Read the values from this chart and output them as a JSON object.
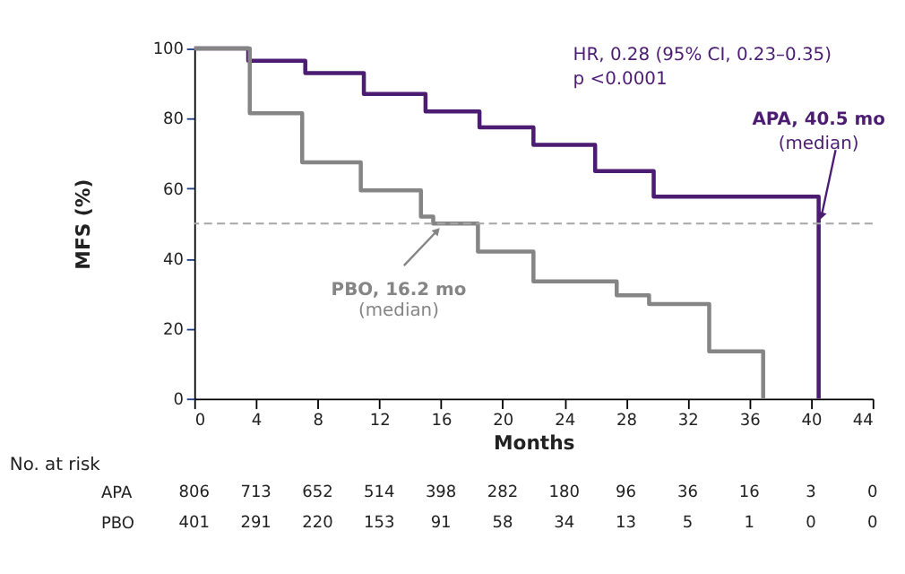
{
  "chart_data": [
    {
      "type": "step",
      "xlabel": "Months",
      "ylabel": "MFS (%)",
      "series": [
        {
          "color": "#4b1c72",
          "x": [
            0,
            3.5,
            7.2,
            11,
            15,
            18.5,
            22,
            26,
            29.8,
            40.5
          ],
          "values": [
            100,
            96.5,
            93,
            87,
            82,
            77.5,
            72.5,
            65,
            57.7,
            0
          ]
        },
        {
          "color": "#858585",
          "x": [
            0,
            3.6,
            7,
            10.8,
            14.7,
            15.5,
            18.4,
            22,
            27.4,
            29.5,
            33.4,
            36.9
          ],
          "values": [
            100,
            81.5,
            67.5,
            59.5,
            52,
            50,
            42,
            33.5,
            29.5,
            27,
            13.5,
            0
          ]
        }
      ],
      "xlim": [
        0,
        44
      ],
      "xticks": [
        0,
        4,
        8,
        12,
        16,
        20,
        24,
        28,
        32,
        36,
        40,
        44
      ],
      "ylim": [
        0,
        100
      ],
      "yticks": [
        0,
        20,
        40,
        60,
        80,
        100
      ],
      "grid": false,
      "ref_lines": [
        {
          "axis": "y",
          "value": 50,
          "color": "#a6a6a6",
          "line_style": "dashed"
        }
      ],
      "annotations": [
        "HR, 0.28 (95% CI, 0.23–0.35)",
        "p <0.0001",
        {
          "text": "APA, 40.5 mo",
          "x": 40.5,
          "y": 50
        },
        "(median)",
        {
          "text": "PBO, 16.2 mo",
          "x": 16.2,
          "y": 50
        },
        "(median)"
      ]
    },
    {
      "type": "heatmap",
      "title": "No. at risk",
      "categories": [
        "0",
        "4",
        "8",
        "12",
        "16",
        "20",
        "24",
        "28",
        "32",
        "36",
        "40",
        "44"
      ],
      "y_categories": [
        "APA",
        "PBO"
      ],
      "cells": [
        [
          806,
          713,
          652,
          514,
          398,
          282,
          180,
          96,
          36,
          16,
          3,
          0
        ],
        [
          401,
          291,
          220,
          153,
          91,
          58,
          34,
          13,
          5,
          1,
          0,
          0
        ]
      ],
      "tick_labels": "y",
      "data_labels": true
    }
  ]
}
